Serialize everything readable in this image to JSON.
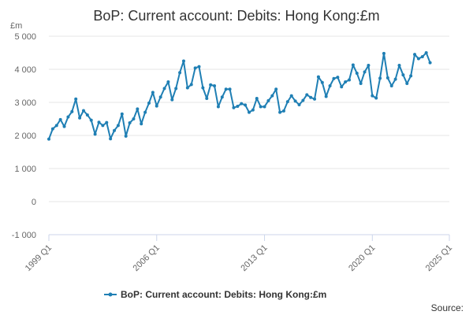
{
  "chart_data": {
    "type": "line",
    "title": "BoP: Current account: Debits: Hong Kong:£m",
    "unit_label": "£m",
    "xlabel": "",
    "ylabel": "",
    "ylim": [
      -1000,
      5000
    ],
    "y_ticks": [
      -1000,
      0,
      1000,
      2000,
      3000,
      4000,
      5000
    ],
    "y_tick_labels": [
      "-1 000",
      "0",
      "1 000",
      "2 000",
      "3 000",
      "4 000",
      "5 000"
    ],
    "x_ticks": [
      "1999 Q1",
      "2006 Q1",
      "2013 Q1",
      "2020 Q1",
      "2025 Q1"
    ],
    "grid": true,
    "legend_position": "bottom",
    "source_label": "Source:",
    "color": "#1f7fb4",
    "series": [
      {
        "name": "BoP: Current account: Debits: Hong Kong:£m",
        "color": "#1f7fb4",
        "values": [
          1890,
          2200,
          2300,
          2480,
          2270,
          2560,
          2720,
          3100,
          2530,
          2750,
          2620,
          2460,
          2040,
          2400,
          2300,
          2390,
          1900,
          2150,
          2300,
          2650,
          1980,
          2380,
          2500,
          2800,
          2350,
          2700,
          2980,
          3300,
          2890,
          3160,
          3420,
          3620,
          3080,
          3420,
          3900,
          4250,
          3440,
          3540,
          4040,
          4080,
          3440,
          3120,
          3530,
          3500,
          2870,
          3160,
          3400,
          3400,
          2840,
          2880,
          2960,
          2920,
          2700,
          2770,
          3120,
          2870,
          2870,
          3050,
          3200,
          3400,
          2700,
          2740,
          3020,
          3200,
          3040,
          2930,
          3060,
          3230,
          3150,
          3100,
          3770,
          3600,
          3180,
          3500,
          3720,
          3760,
          3470,
          3620,
          3680,
          4130,
          3880,
          3570,
          3920,
          4120,
          3200,
          3130,
          3730,
          4480,
          3740,
          3500,
          3700,
          4120,
          3830,
          3570,
          3800,
          4450,
          4320,
          4380,
          4500,
          4200
        ]
      }
    ]
  }
}
